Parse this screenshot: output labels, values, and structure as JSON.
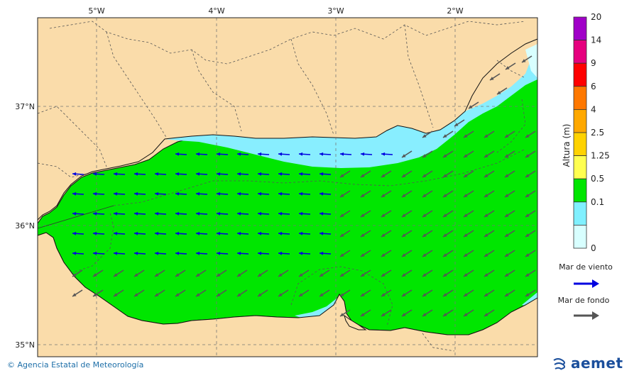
{
  "map": {
    "lon_ticks": [
      "5°W",
      "4°W",
      "3°W",
      "2°W"
    ],
    "lat_ticks": [
      "37°N",
      "36°N",
      "35°N"
    ]
  },
  "colorbar": {
    "title": "Altura (m)",
    "labels": [
      "20",
      "14",
      "9",
      "6",
      "4",
      "2.5",
      "1.25",
      "0.5",
      "0.1",
      "0"
    ],
    "colors": [
      "#a000c8",
      "#e6007e",
      "#ff0000",
      "#ff7800",
      "#ffa800",
      "#ffd200",
      "#ffff50",
      "#00e600",
      "#80f0ff",
      "#d8ffff"
    ]
  },
  "legend": {
    "wind_sea": "Mar de viento",
    "swell": "Mar de fondo",
    "wind_color": "#0000e0",
    "swell_color": "#555555"
  },
  "colors": {
    "land": "#fadcaa",
    "sea_green": "#00e600",
    "sea_light": "#88eeff",
    "sea_pale": "#d8ffff"
  },
  "footer": {
    "credit": "Agencia Estatal de Meteorología",
    "logo": "aemet"
  }
}
